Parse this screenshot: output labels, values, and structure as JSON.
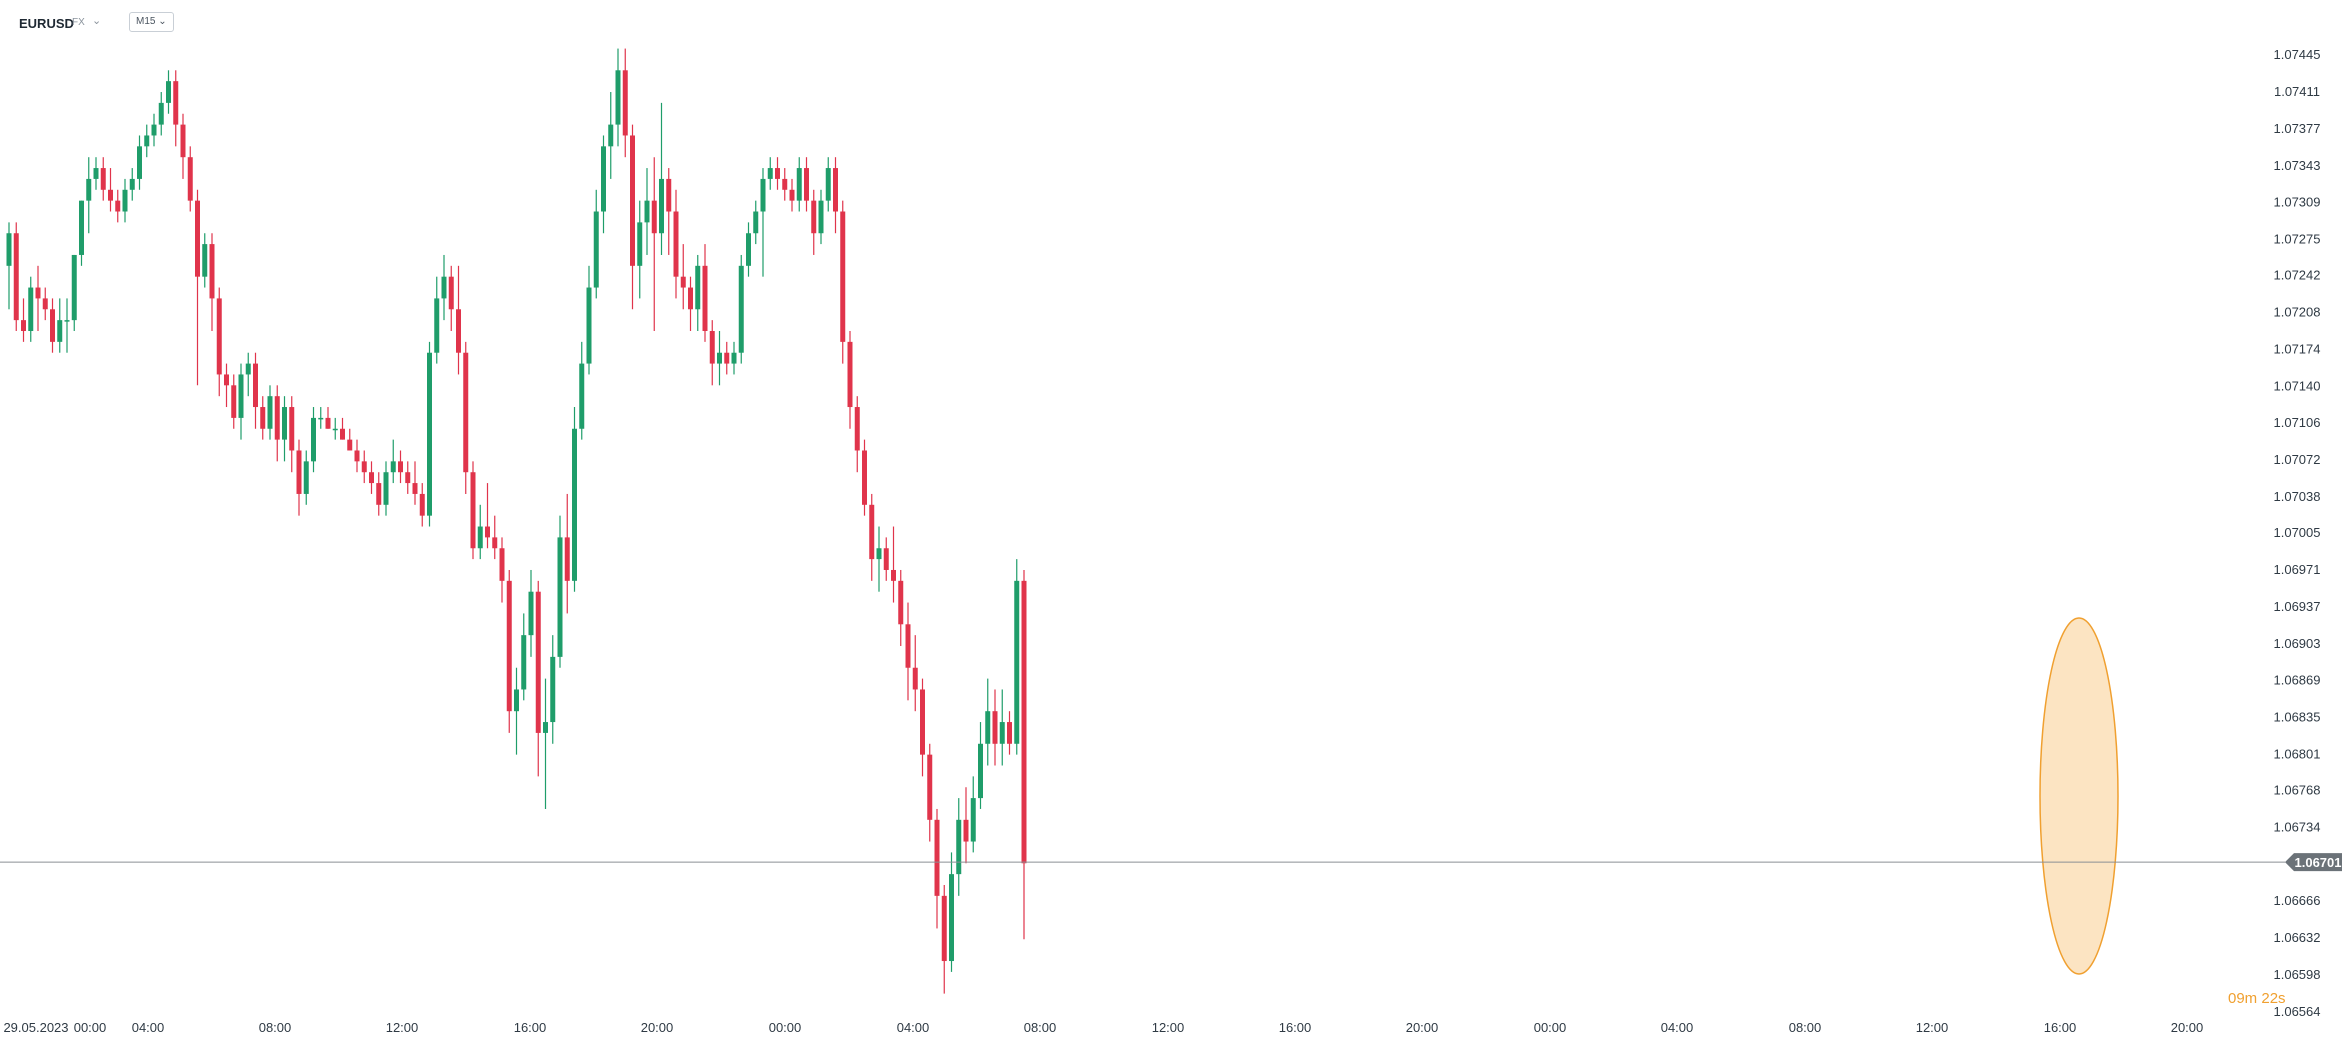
{
  "header": {
    "symbol": "EURUSD",
    "market": "FX",
    "timeframe": "M15"
  },
  "colors": {
    "up": "#1f9d6a",
    "down": "#e0344b",
    "price_line": "#8a8f94",
    "price_tag": "#6b7278",
    "highlight_fill": "#fbd9a8",
    "highlight_stroke": "#f0a030",
    "timer": "#f0a030"
  },
  "timer": {
    "value": "09m 22s"
  },
  "chart_data": {
    "type": "candlestick",
    "y_ticks": [
      "1.07445",
      "1.07411",
      "1.07377",
      "1.07343",
      "1.07309",
      "1.07275",
      "1.07242",
      "1.07208",
      "1.07174",
      "1.07140",
      "1.07106",
      "1.07072",
      "1.07038",
      "1.07005",
      "1.06971",
      "1.06937",
      "1.06903",
      "1.06869",
      "1.06835",
      "1.06801",
      "1.06768",
      "1.06734",
      "1.06666",
      "1.06632",
      "1.06598",
      "1.06564"
    ],
    "ylim": [
      1.06564,
      1.07445
    ],
    "x_ticks": [
      "29.05.2023",
      "00:00",
      "04:00",
      "08:00",
      "12:00",
      "16:00",
      "20:00",
      "00:00",
      "04:00",
      "08:00",
      "12:00",
      "16:00",
      "20:00",
      "00:00",
      "04:00",
      "08:00",
      "12:00",
      "16:00",
      "20:00"
    ],
    "current_price": "1.06701",
    "current_price_value": 1.06701,
    "candles": [
      [
        1.0725,
        1.0729,
        1.0721,
        1.0728
      ],
      [
        1.0728,
        1.0729,
        1.0719,
        1.072
      ],
      [
        1.072,
        1.0722,
        1.0718,
        1.0719
      ],
      [
        1.0719,
        1.0724,
        1.0718,
        1.0723
      ],
      [
        1.0723,
        1.0725,
        1.0719,
        1.0722
      ],
      [
        1.0722,
        1.0723,
        1.072,
        1.0721
      ],
      [
        1.0721,
        1.0722,
        1.0717,
        1.0718
      ],
      [
        1.0718,
        1.0722,
        1.0717,
        1.072
      ],
      [
        1.072,
        1.0722,
        1.0717,
        1.072
      ],
      [
        1.072,
        1.0726,
        1.0719,
        1.0726
      ],
      [
        1.0726,
        1.0731,
        1.0725,
        1.0731
      ],
      [
        1.0731,
        1.0735,
        1.0728,
        1.0733
      ],
      [
        1.0733,
        1.0735,
        1.0732,
        1.0734
      ],
      [
        1.0734,
        1.0735,
        1.0731,
        1.0732
      ],
      [
        1.0732,
        1.0734,
        1.073,
        1.0731
      ],
      [
        1.0731,
        1.0732,
        1.0729,
        1.073
      ],
      [
        1.073,
        1.0733,
        1.0729,
        1.0732
      ],
      [
        1.0732,
        1.0734,
        1.0731,
        1.0733
      ],
      [
        1.0733,
        1.0737,
        1.0732,
        1.0736
      ],
      [
        1.0736,
        1.0738,
        1.0735,
        1.0737
      ],
      [
        1.0737,
        1.0739,
        1.0736,
        1.0738
      ],
      [
        1.0738,
        1.0741,
        1.0737,
        1.074
      ],
      [
        1.074,
        1.0743,
        1.0739,
        1.0742
      ],
      [
        1.0742,
        1.0743,
        1.0736,
        1.0738
      ],
      [
        1.0738,
        1.0739,
        1.0733,
        1.0735
      ],
      [
        1.0735,
        1.0736,
        1.073,
        1.0731
      ],
      [
        1.0731,
        1.0732,
        1.0714,
        1.0724
      ],
      [
        1.0724,
        1.0728,
        1.0723,
        1.0727
      ],
      [
        1.0727,
        1.0728,
        1.0719,
        1.0722
      ],
      [
        1.0722,
        1.0723,
        1.0713,
        1.0715
      ],
      [
        1.0715,
        1.0716,
        1.0712,
        1.0714
      ],
      [
        1.0714,
        1.0715,
        1.071,
        1.0711
      ],
      [
        1.0711,
        1.0716,
        1.0709,
        1.0715
      ],
      [
        1.0715,
        1.0717,
        1.0713,
        1.0716
      ],
      [
        1.0716,
        1.0717,
        1.071,
        1.0712
      ],
      [
        1.0712,
        1.0713,
        1.0709,
        1.071
      ],
      [
        1.071,
        1.0714,
        1.0709,
        1.0713
      ],
      [
        1.0713,
        1.0714,
        1.0707,
        1.0709
      ],
      [
        1.0709,
        1.0713,
        1.0707,
        1.0712
      ],
      [
        1.0712,
        1.0713,
        1.0706,
        1.0708
      ],
      [
        1.0708,
        1.0709,
        1.0702,
        1.0704
      ],
      [
        1.0704,
        1.0708,
        1.0703,
        1.0707
      ],
      [
        1.0707,
        1.0712,
        1.0706,
        1.0711
      ],
      [
        1.0711,
        1.0712,
        1.071,
        1.0711
      ],
      [
        1.0711,
        1.0712,
        1.071,
        1.071
      ],
      [
        1.071,
        1.0711,
        1.0709,
        1.071
      ],
      [
        1.071,
        1.0711,
        1.0709,
        1.0709
      ],
      [
        1.0709,
        1.071,
        1.0708,
        1.0708
      ],
      [
        1.0708,
        1.0709,
        1.0706,
        1.0707
      ],
      [
        1.0707,
        1.0708,
        1.0705,
        1.0706
      ],
      [
        1.0706,
        1.0707,
        1.0704,
        1.0705
      ],
      [
        1.0705,
        1.0706,
        1.0702,
        1.0703
      ],
      [
        1.0703,
        1.0707,
        1.0702,
        1.0706
      ],
      [
        1.0706,
        1.0709,
        1.0705,
        1.0707
      ],
      [
        1.0707,
        1.0708,
        1.0705,
        1.0706
      ],
      [
        1.0706,
        1.0707,
        1.0704,
        1.0705
      ],
      [
        1.0705,
        1.0707,
        1.0703,
        1.0704
      ],
      [
        1.0704,
        1.0705,
        1.0701,
        1.0702
      ],
      [
        1.0702,
        1.0718,
        1.0701,
        1.0717
      ],
      [
        1.0717,
        1.0724,
        1.0716,
        1.0722
      ],
      [
        1.0722,
        1.0726,
        1.072,
        1.0724
      ],
      [
        1.0724,
        1.0725,
        1.0719,
        1.0721
      ],
      [
        1.0721,
        1.0725,
        1.0715,
        1.0717
      ],
      [
        1.0717,
        1.0718,
        1.0704,
        1.0706
      ],
      [
        1.0706,
        1.0707,
        1.0698,
        1.0699
      ],
      [
        1.0699,
        1.0703,
        1.0698,
        1.0701
      ],
      [
        1.0701,
        1.0705,
        1.0699,
        1.07
      ],
      [
        1.07,
        1.0702,
        1.0698,
        1.0699
      ],
      [
        1.0699,
        1.07,
        1.0694,
        1.0696
      ],
      [
        1.0696,
        1.0697,
        1.0682,
        1.0684
      ],
      [
        1.0684,
        1.0688,
        1.068,
        1.0686
      ],
      [
        1.0686,
        1.0693,
        1.0685,
        1.0691
      ],
      [
        1.0691,
        1.0697,
        1.0689,
        1.0695
      ],
      [
        1.0695,
        1.0696,
        1.0678,
        1.0682
      ],
      [
        1.0682,
        1.0687,
        1.0675,
        1.0683
      ],
      [
        1.0683,
        1.0691,
        1.0681,
        1.0689
      ],
      [
        1.0689,
        1.0702,
        1.0688,
        1.07
      ],
      [
        1.07,
        1.0704,
        1.0693,
        1.0696
      ],
      [
        1.0696,
        1.0712,
        1.0695,
        1.071
      ],
      [
        1.071,
        1.0718,
        1.0709,
        1.0716
      ],
      [
        1.0716,
        1.0725,
        1.0715,
        1.0723
      ],
      [
        1.0723,
        1.0732,
        1.0722,
        1.073
      ],
      [
        1.073,
        1.0737,
        1.0728,
        1.0736
      ],
      [
        1.0736,
        1.0741,
        1.0733,
        1.0738
      ],
      [
        1.0738,
        1.0745,
        1.0736,
        1.0743
      ],
      [
        1.0743,
        1.0745,
        1.0735,
        1.0737
      ],
      [
        1.0737,
        1.0738,
        1.0721,
        1.0725
      ],
      [
        1.0725,
        1.0731,
        1.0722,
        1.0729
      ],
      [
        1.0729,
        1.0734,
        1.0726,
        1.0731
      ],
      [
        1.0731,
        1.0735,
        1.0719,
        1.0728
      ],
      [
        1.0728,
        1.074,
        1.0726,
        1.0733
      ],
      [
        1.0733,
        1.0734,
        1.0726,
        1.073
      ],
      [
        1.073,
        1.0732,
        1.0722,
        1.0724
      ],
      [
        1.0724,
        1.0727,
        1.0721,
        1.0723
      ],
      [
        1.0723,
        1.0724,
        1.0719,
        1.0721
      ],
      [
        1.0721,
        1.0726,
        1.0719,
        1.0725
      ],
      [
        1.0725,
        1.0727,
        1.0718,
        1.0719
      ],
      [
        1.0719,
        1.072,
        1.0714,
        1.0716
      ],
      [
        1.0716,
        1.0719,
        1.0714,
        1.0717
      ],
      [
        1.0717,
        1.0718,
        1.0715,
        1.0716
      ],
      [
        1.0716,
        1.0718,
        1.0715,
        1.0717
      ],
      [
        1.0717,
        1.0726,
        1.0716,
        1.0725
      ],
      [
        1.0725,
        1.0729,
        1.0724,
        1.0728
      ],
      [
        1.0728,
        1.0731,
        1.0727,
        1.073
      ],
      [
        1.073,
        1.0734,
        1.0724,
        1.0733
      ],
      [
        1.0733,
        1.0735,
        1.0732,
        1.0734
      ],
      [
        1.0734,
        1.0735,
        1.0732,
        1.0733
      ],
      [
        1.0733,
        1.0734,
        1.0731,
        1.0732
      ],
      [
        1.0732,
        1.0733,
        1.073,
        1.0731
      ],
      [
        1.0731,
        1.0735,
        1.073,
        1.0734
      ],
      [
        1.0734,
        1.0735,
        1.073,
        1.0731
      ],
      [
        1.0731,
        1.0732,
        1.0726,
        1.0728
      ],
      [
        1.0728,
        1.0732,
        1.0727,
        1.0731
      ],
      [
        1.0731,
        1.0735,
        1.073,
        1.0734
      ],
      [
        1.0734,
        1.0735,
        1.0728,
        1.073
      ],
      [
        1.073,
        1.0731,
        1.0716,
        1.0718
      ],
      [
        1.0718,
        1.0719,
        1.071,
        1.0712
      ],
      [
        1.0712,
        1.0713,
        1.0706,
        1.0708
      ],
      [
        1.0708,
        1.0709,
        1.0702,
        1.0703
      ],
      [
        1.0703,
        1.0704,
        1.0696,
        1.0698
      ],
      [
        1.0698,
        1.0701,
        1.0695,
        1.0699
      ],
      [
        1.0699,
        1.07,
        1.0696,
        1.0697
      ],
      [
        1.0697,
        1.0701,
        1.0694,
        1.0696
      ],
      [
        1.0696,
        1.0697,
        1.069,
        1.0692
      ],
      [
        1.0692,
        1.0694,
        1.0685,
        1.0688
      ],
      [
        1.0688,
        1.0691,
        1.0684,
        1.0686
      ],
      [
        1.0686,
        1.0687,
        1.0678,
        1.068
      ],
      [
        1.068,
        1.0681,
        1.0672,
        1.0674
      ],
      [
        1.0674,
        1.0675,
        1.0664,
        1.0667
      ],
      [
        1.0667,
        1.0668,
        1.0658,
        1.0661
      ],
      [
        1.0661,
        1.0671,
        1.066,
        1.0669
      ],
      [
        1.0669,
        1.0676,
        1.0667,
        1.0674
      ],
      [
        1.0674,
        1.0677,
        1.067,
        1.0672
      ],
      [
        1.0672,
        1.0678,
        1.0671,
        1.0676
      ],
      [
        1.0676,
        1.0683,
        1.0675,
        1.0681
      ],
      [
        1.0681,
        1.0687,
        1.0679,
        1.0684
      ],
      [
        1.0684,
        1.0686,
        1.0679,
        1.0681
      ],
      [
        1.0681,
        1.0686,
        1.0679,
        1.0683
      ],
      [
        1.0683,
        1.0684,
        1.068,
        1.0681
      ],
      [
        1.0681,
        1.0698,
        1.068,
        1.0696
      ],
      [
        1.0696,
        1.0697,
        1.0663,
        1.067
      ]
    ]
  }
}
